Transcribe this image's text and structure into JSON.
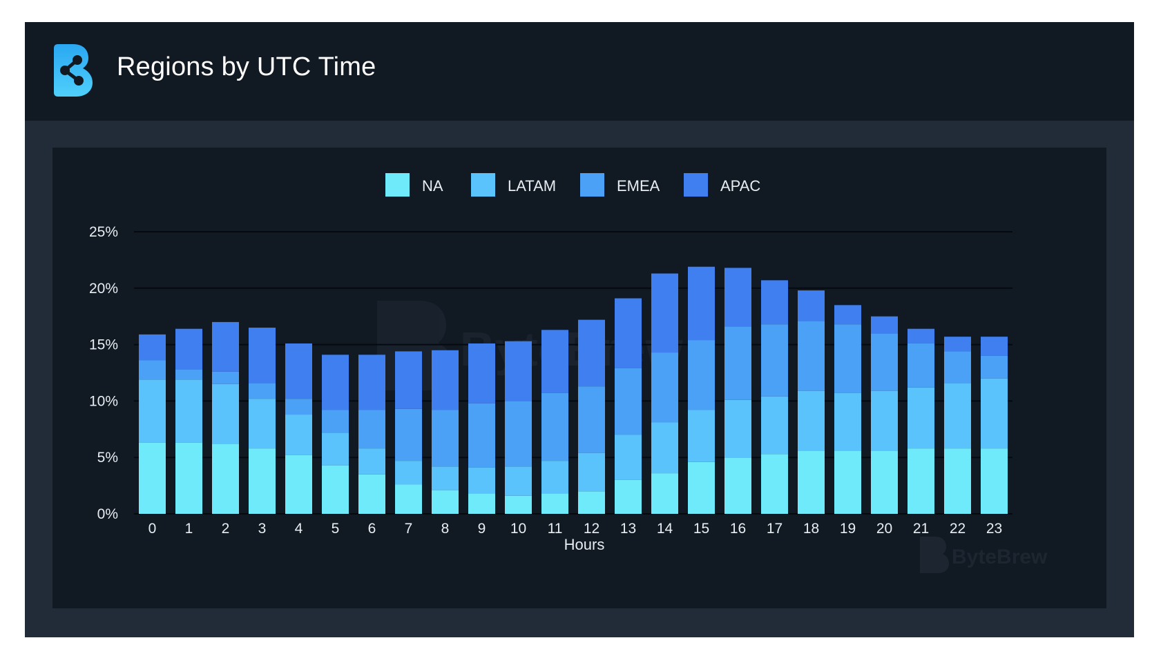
{
  "header": {
    "title": "Regions by UTC Time",
    "logo_icon": "bytebrew-logo-icon"
  },
  "watermark": {
    "text": "ByteBrew"
  },
  "colors": {
    "page_bg": "#ffffff",
    "frame_bg": "#222c39",
    "header_bg": "#111923",
    "panel_bg": "#111923",
    "grid": "#060a0f",
    "text": "#e8edf2"
  },
  "chart_data": {
    "type": "bar",
    "stacked": true,
    "title": "",
    "xlabel": "Hours",
    "ylabel": "",
    "ylim": [
      0,
      25
    ],
    "y_ticks": [
      "0%",
      "5%",
      "10%",
      "15%",
      "20%",
      "25%"
    ],
    "y_tick_values": [
      0,
      5,
      10,
      15,
      20,
      25
    ],
    "legend_position": "top-center",
    "grid": true,
    "categories": [
      "0",
      "1",
      "2",
      "3",
      "4",
      "5",
      "6",
      "7",
      "8",
      "9",
      "10",
      "11",
      "12",
      "13",
      "14",
      "15",
      "16",
      "17",
      "18",
      "19",
      "20",
      "21",
      "22",
      "23"
    ],
    "series": [
      {
        "name": "NA",
        "color": "#6eeafb",
        "values": [
          6.3,
          6.3,
          6.2,
          5.8,
          5.2,
          4.3,
          3.5,
          2.6,
          2.1,
          1.8,
          1.6,
          1.8,
          2.0,
          3.0,
          3.6,
          4.6,
          5.0,
          5.3,
          5.6,
          5.6,
          5.6,
          5.8,
          5.8,
          5.8
        ]
      },
      {
        "name": "LATAM",
        "color": "#5ac3fb",
        "values": [
          5.6,
          5.6,
          5.3,
          4.4,
          3.6,
          2.9,
          2.3,
          2.1,
          2.1,
          2.3,
          2.6,
          2.9,
          3.4,
          4.0,
          4.5,
          4.6,
          5.1,
          5.1,
          5.3,
          5.1,
          5.3,
          5.4,
          5.8,
          6.2
        ]
      },
      {
        "name": "EMEA",
        "color": "#4aa1f6",
        "values": [
          1.7,
          0.9,
          1.1,
          1.4,
          1.4,
          2.0,
          3.4,
          4.6,
          5.0,
          5.7,
          5.8,
          6.0,
          5.9,
          5.9,
          6.2,
          6.2,
          6.5,
          6.4,
          6.2,
          6.1,
          5.1,
          3.9,
          2.8,
          2.0
        ]
      },
      {
        "name": "APAC",
        "color": "#3f7ff0",
        "values": [
          2.3,
          3.6,
          4.4,
          4.9,
          4.9,
          4.9,
          4.9,
          5.1,
          5.3,
          5.3,
          5.3,
          5.6,
          5.9,
          6.2,
          7.0,
          6.5,
          5.2,
          3.9,
          2.7,
          1.7,
          1.5,
          1.3,
          1.3,
          1.7
        ]
      }
    ]
  }
}
